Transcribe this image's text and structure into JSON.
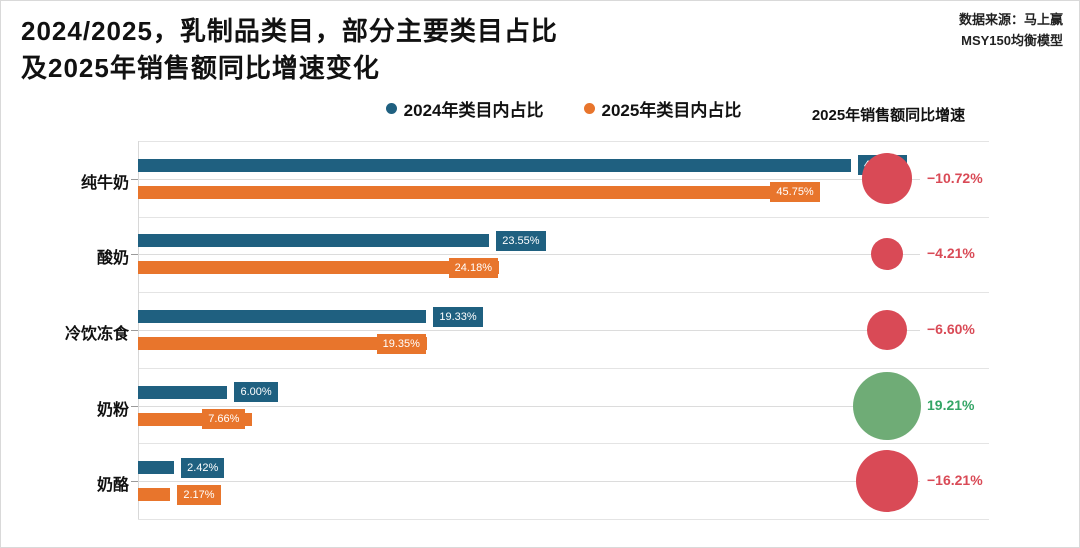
{
  "title": {
    "line1": "2024/2025，乳制品类目，部分主要类目占比",
    "line2": "及2025年销售额同比增速变化"
  },
  "source": {
    "line1": "数据来源：马上赢",
    "line2": "MSY150均衡模型"
  },
  "legend": {
    "items": [
      {
        "label": "2024年类目内占比",
        "color": "#1f6080"
      },
      {
        "label": "2025年类目内占比",
        "color": "#e8752c"
      }
    ]
  },
  "growth_column": {
    "header": "2025年销售额同比增速"
  },
  "chart_data": {
    "type": "bar",
    "orientation": "horizontal",
    "title": "2024/2025，乳制品类目，部分主要类目占比及2025年销售额同比增速变化",
    "categories": [
      "纯牛奶",
      "酸奶",
      "冷饮冻食",
      "奶粉",
      "奶酪"
    ],
    "series": [
      {
        "name": "2024年类目内占比",
        "color": "#1f6080",
        "values": [
          47.8,
          23.55,
          19.33,
          6.0,
          2.42
        ],
        "labels": [
          "47.80%",
          "23.55%",
          "19.33%",
          "6.00%",
          "2.42%"
        ]
      },
      {
        "name": "2025年类目内占比",
        "color": "#e8752c",
        "values": [
          45.75,
          24.18,
          19.35,
          7.66,
          2.17
        ],
        "labels": [
          "45.75%",
          "24.18%",
          "19.35%",
          "7.66%",
          "2.17%"
        ]
      }
    ],
    "growth": {
      "name": "2025年销售额同比增速",
      "values": [
        -10.72,
        -4.21,
        -6.6,
        19.21,
        -16.21
      ],
      "labels": [
        "−10.72%",
        "−4.21%",
        "−6.60%",
        "19.21%",
        "−16.21%"
      ],
      "negative_circle_color": "#d94a56",
      "positive_circle_color": "#6fac76",
      "negative_text_color": "#d94a56",
      "positive_text_color": "#34a566"
    },
    "xlim": [
      0,
      58.75
    ],
    "grid": true,
    "legend_position": "top"
  }
}
